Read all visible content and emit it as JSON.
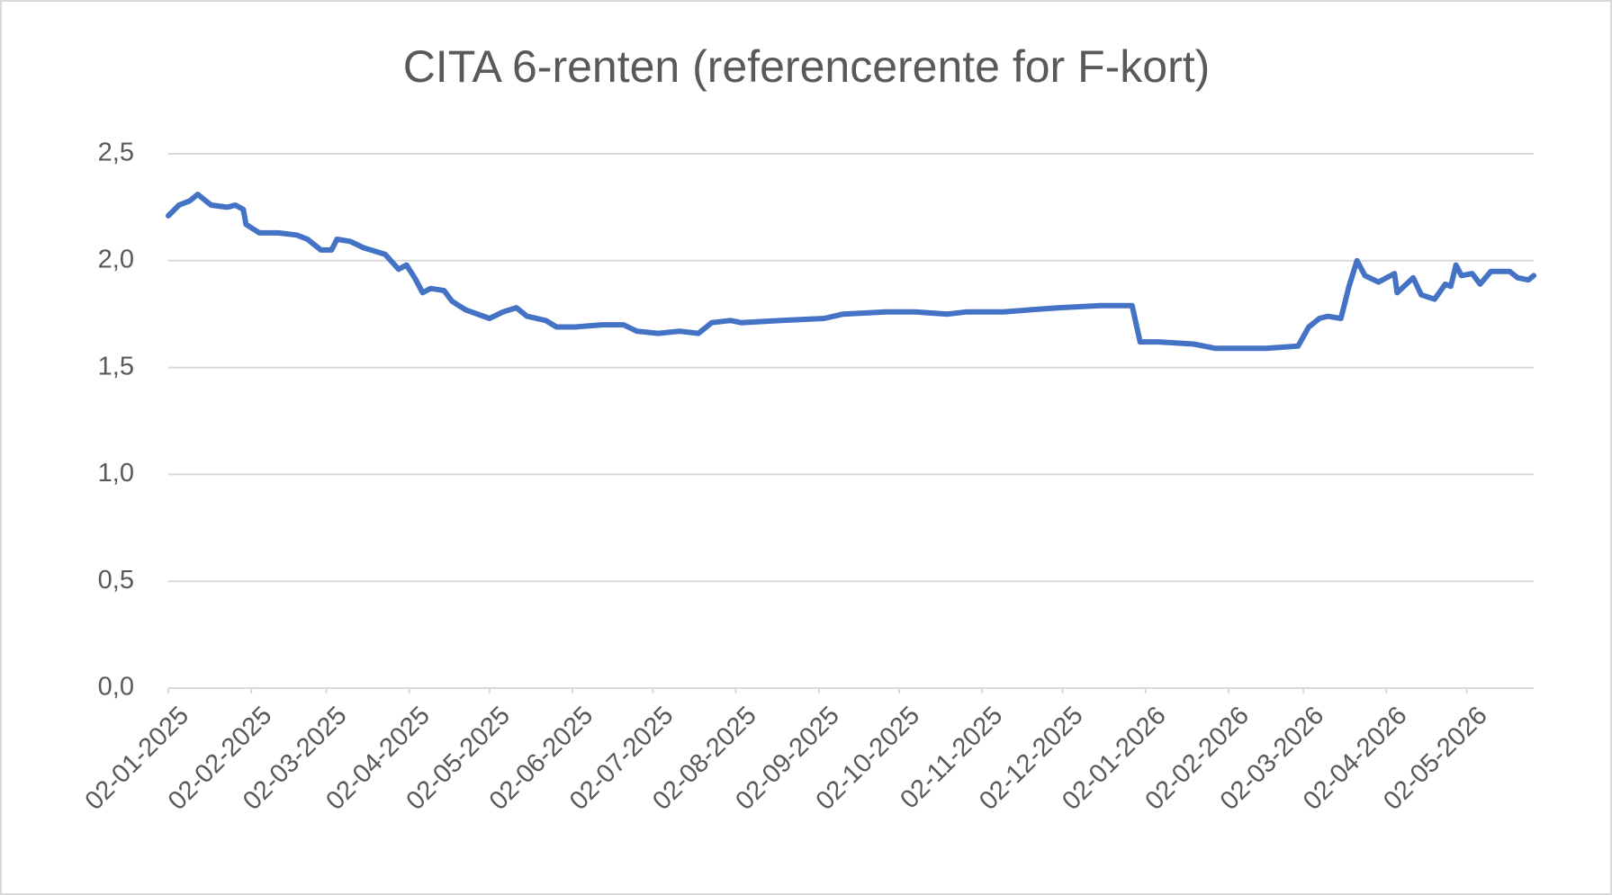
{
  "chart_data": {
    "type": "line",
    "title": "CITA 6-renten (referencerente for F-kort)",
    "x": [
      "2025-01-02",
      "2025-01-06",
      "2025-01-10",
      "2025-01-13",
      "2025-01-16",
      "2025-01-18",
      "2025-01-24",
      "2025-01-27",
      "2025-01-30",
      "2025-01-31",
      "2025-02-05",
      "2025-02-12",
      "2025-02-19",
      "2025-02-23",
      "2025-02-28",
      "2025-03-04",
      "2025-03-06",
      "2025-03-11",
      "2025-03-16",
      "2025-03-24",
      "2025-03-29",
      "2025-04-01",
      "2025-04-04",
      "2025-04-07",
      "2025-04-10",
      "2025-04-15",
      "2025-04-18",
      "2025-04-23",
      "2025-05-02",
      "2025-05-07",
      "2025-05-12",
      "2025-05-16",
      "2025-05-23",
      "2025-05-27",
      "2025-06-03",
      "2025-06-13",
      "2025-06-21",
      "2025-06-26",
      "2025-07-04",
      "2025-07-12",
      "2025-07-19",
      "2025-07-24",
      "2025-07-31",
      "2025-08-04",
      "2025-08-19",
      "2025-09-04",
      "2025-09-11",
      "2025-09-27",
      "2025-10-08",
      "2025-10-20",
      "2025-10-27",
      "2025-11-10",
      "2025-11-20",
      "2025-12-01",
      "2025-12-16",
      "2025-12-28",
      "2025-12-31",
      "2026-01-07",
      "2026-01-20",
      "2026-01-28",
      "2026-02-08",
      "2026-02-16",
      "2026-02-28",
      "2026-03-04",
      "2026-03-08",
      "2026-03-11",
      "2026-03-16",
      "2026-03-19",
      "2026-03-22",
      "2026-03-25",
      "2026-03-30",
      "2026-04-05",
      "2026-04-06",
      "2026-04-12",
      "2026-04-15",
      "2026-04-20",
      "2026-04-24",
      "2026-04-26",
      "2026-04-28",
      "2026-04-30",
      "2026-05-04",
      "2026-05-07",
      "2026-05-11",
      "2026-05-18",
      "2026-05-21",
      "2026-05-25",
      "2026-05-27"
    ],
    "series": [
      {
        "name": "CITA 6-renten",
        "color": "#4472c4",
        "values": [
          2.21,
          2.26,
          2.28,
          2.31,
          2.28,
          2.26,
          2.25,
          2.26,
          2.24,
          2.17,
          2.13,
          2.13,
          2.12,
          2.1,
          2.05,
          2.05,
          2.1,
          2.09,
          2.06,
          2.03,
          1.96,
          1.98,
          1.92,
          1.85,
          1.87,
          1.86,
          1.81,
          1.77,
          1.73,
          1.76,
          1.78,
          1.74,
          1.72,
          1.69,
          1.69,
          1.7,
          1.7,
          1.67,
          1.66,
          1.67,
          1.66,
          1.71,
          1.72,
          1.71,
          1.72,
          1.73,
          1.75,
          1.76,
          1.76,
          1.75,
          1.76,
          1.76,
          1.77,
          1.78,
          1.79,
          1.79,
          1.62,
          1.62,
          1.61,
          1.59,
          1.59,
          1.59,
          1.6,
          1.69,
          1.73,
          1.74,
          1.73,
          1.88,
          2.0,
          1.93,
          1.9,
          1.94,
          1.85,
          1.92,
          1.84,
          1.82,
          1.89,
          1.88,
          1.98,
          1.93,
          1.94,
          1.89,
          1.95,
          1.95,
          1.92,
          1.91,
          1.93
        ]
      }
    ],
    "xlim": [
      "2025-01-02",
      "2026-05-27"
    ],
    "xticks": [
      {
        "value": "2025-01-02",
        "label": "02-01-2025"
      },
      {
        "value": "2025-02-02",
        "label": "02-02-2025"
      },
      {
        "value": "2025-03-02",
        "label": "02-03-2025"
      },
      {
        "value": "2025-04-02",
        "label": "02-04-2025"
      },
      {
        "value": "2025-05-02",
        "label": "02-05-2025"
      },
      {
        "value": "2025-06-02",
        "label": "02-06-2025"
      },
      {
        "value": "2025-07-02",
        "label": "02-07-2025"
      },
      {
        "value": "2025-08-02",
        "label": "02-08-2025"
      },
      {
        "value": "2025-09-02",
        "label": "02-09-2025"
      },
      {
        "value": "2025-10-02",
        "label": "02-10-2025"
      },
      {
        "value": "2025-11-02",
        "label": "02-11-2025"
      },
      {
        "value": "2025-12-02",
        "label": "02-12-2025"
      },
      {
        "value": "2026-01-02",
        "label": "02-01-2026"
      },
      {
        "value": "2026-02-02",
        "label": "02-02-2026"
      },
      {
        "value": "2026-03-02",
        "label": "02-03-2026"
      },
      {
        "value": "2026-04-02",
        "label": "02-04-2026"
      },
      {
        "value": "2026-05-02",
        "label": "02-05-2026"
      }
    ],
    "ylim": [
      0,
      2.5
    ],
    "yticks": [
      {
        "value": 0,
        "label": "0,0"
      },
      {
        "value": 0.5,
        "label": "0,5"
      },
      {
        "value": 1,
        "label": "1,0"
      },
      {
        "value": 1.5,
        "label": "1,5"
      },
      {
        "value": 2,
        "label": "2,0"
      },
      {
        "value": 2.5,
        "label": "2,5"
      }
    ],
    "grid": true
  }
}
